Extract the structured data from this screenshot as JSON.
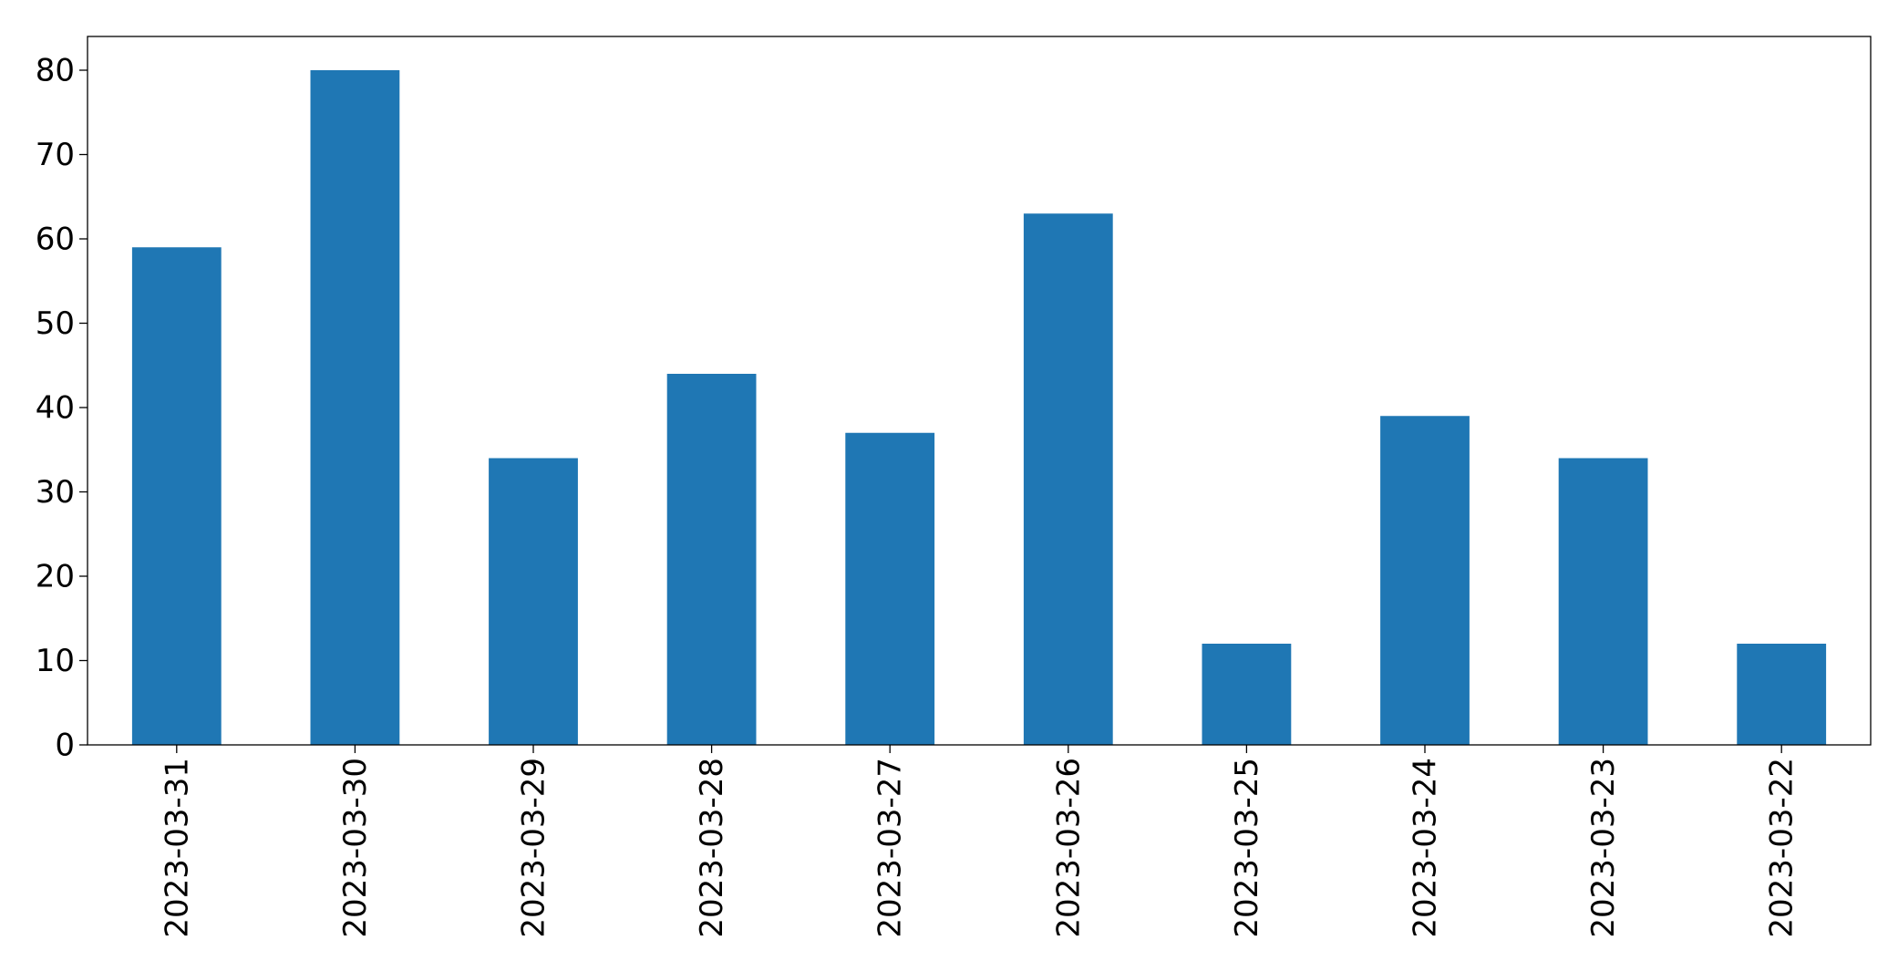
{
  "chart_data": {
    "type": "bar",
    "categories": [
      "2023-03-31",
      "2023-03-30",
      "2023-03-29",
      "2023-03-28",
      "2023-03-27",
      "2023-03-26",
      "2023-03-25",
      "2023-03-24",
      "2023-03-23",
      "2023-03-22"
    ],
    "values": [
      59,
      80,
      34,
      44,
      37,
      63,
      12,
      39,
      34,
      12
    ],
    "color": "#1f77b4",
    "ylim": [
      0,
      84
    ],
    "yticks": [
      0,
      10,
      20,
      30,
      40,
      50,
      60,
      70,
      80
    ],
    "grid": false
  }
}
